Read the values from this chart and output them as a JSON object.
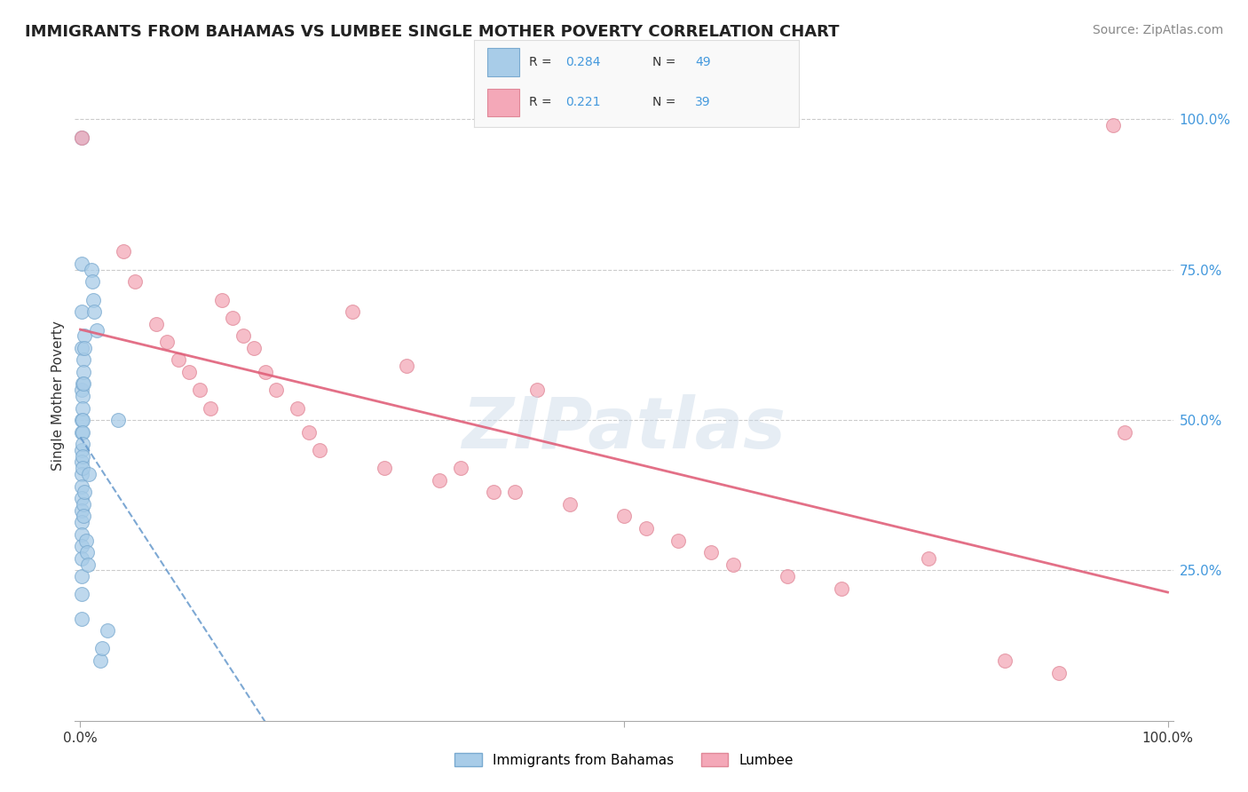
{
  "title": "IMMIGRANTS FROM BAHAMAS VS LUMBEE SINGLE MOTHER POVERTY CORRELATION CHART",
  "source": "Source: ZipAtlas.com",
  "ylabel": "Single Mother Poverty",
  "right_ytick_labels": [
    "25.0%",
    "50.0%",
    "75.0%",
    "100.0%"
  ],
  "right_ytick_values": [
    0.25,
    0.5,
    0.75,
    1.0
  ],
  "legend_entries": [
    {
      "label": "Immigrants from Bahamas",
      "R": 0.284,
      "N": 49,
      "color": "#a8cce8",
      "edge": "#7aaad0"
    },
    {
      "label": "Lumbee",
      "R": 0.221,
      "N": 39,
      "color": "#f4a8b8",
      "edge": "#e08898"
    }
  ],
  "blue_line_color": "#6699cc",
  "pink_line_color": "#e0607a",
  "watermark_color": "#c8d8e8",
  "blue_x": [
    0.001,
    0.001,
    0.001,
    0.001,
    0.001,
    0.001,
    0.001,
    0.001,
    0.001,
    0.001,
    0.001,
    0.001,
    0.001,
    0.001,
    0.001,
    0.001,
    0.001,
    0.001,
    0.001,
    0.001,
    0.002,
    0.002,
    0.002,
    0.002,
    0.002,
    0.002,
    0.002,
    0.002,
    0.003,
    0.003,
    0.003,
    0.003,
    0.003,
    0.004,
    0.004,
    0.004,
    0.005,
    0.006,
    0.007,
    0.008,
    0.01,
    0.011,
    0.012,
    0.013,
    0.015,
    0.018,
    0.02,
    0.025,
    0.035
  ],
  "blue_y": [
    0.97,
    0.76,
    0.68,
    0.62,
    0.55,
    0.5,
    0.48,
    0.45,
    0.43,
    0.41,
    0.39,
    0.37,
    0.35,
    0.33,
    0.31,
    0.29,
    0.27,
    0.24,
    0.21,
    0.17,
    0.56,
    0.54,
    0.52,
    0.5,
    0.48,
    0.46,
    0.44,
    0.42,
    0.6,
    0.58,
    0.56,
    0.36,
    0.34,
    0.64,
    0.62,
    0.38,
    0.3,
    0.28,
    0.26,
    0.41,
    0.75,
    0.73,
    0.7,
    0.68,
    0.65,
    0.1,
    0.12,
    0.15,
    0.5
  ],
  "pink_x": [
    0.001,
    0.04,
    0.05,
    0.07,
    0.08,
    0.09,
    0.1,
    0.11,
    0.12,
    0.13,
    0.14,
    0.15,
    0.16,
    0.17,
    0.18,
    0.2,
    0.21,
    0.22,
    0.25,
    0.28,
    0.3,
    0.33,
    0.35,
    0.38,
    0.4,
    0.42,
    0.45,
    0.5,
    0.52,
    0.55,
    0.58,
    0.6,
    0.65,
    0.7,
    0.78,
    0.85,
    0.9,
    0.95,
    0.96
  ],
  "pink_y": [
    0.97,
    0.78,
    0.73,
    0.66,
    0.63,
    0.6,
    0.58,
    0.55,
    0.52,
    0.7,
    0.67,
    0.64,
    0.62,
    0.58,
    0.55,
    0.52,
    0.48,
    0.45,
    0.68,
    0.42,
    0.59,
    0.4,
    0.42,
    0.38,
    0.38,
    0.55,
    0.36,
    0.34,
    0.32,
    0.3,
    0.28,
    0.26,
    0.24,
    0.22,
    0.27,
    0.1,
    0.08,
    0.99,
    0.48
  ]
}
